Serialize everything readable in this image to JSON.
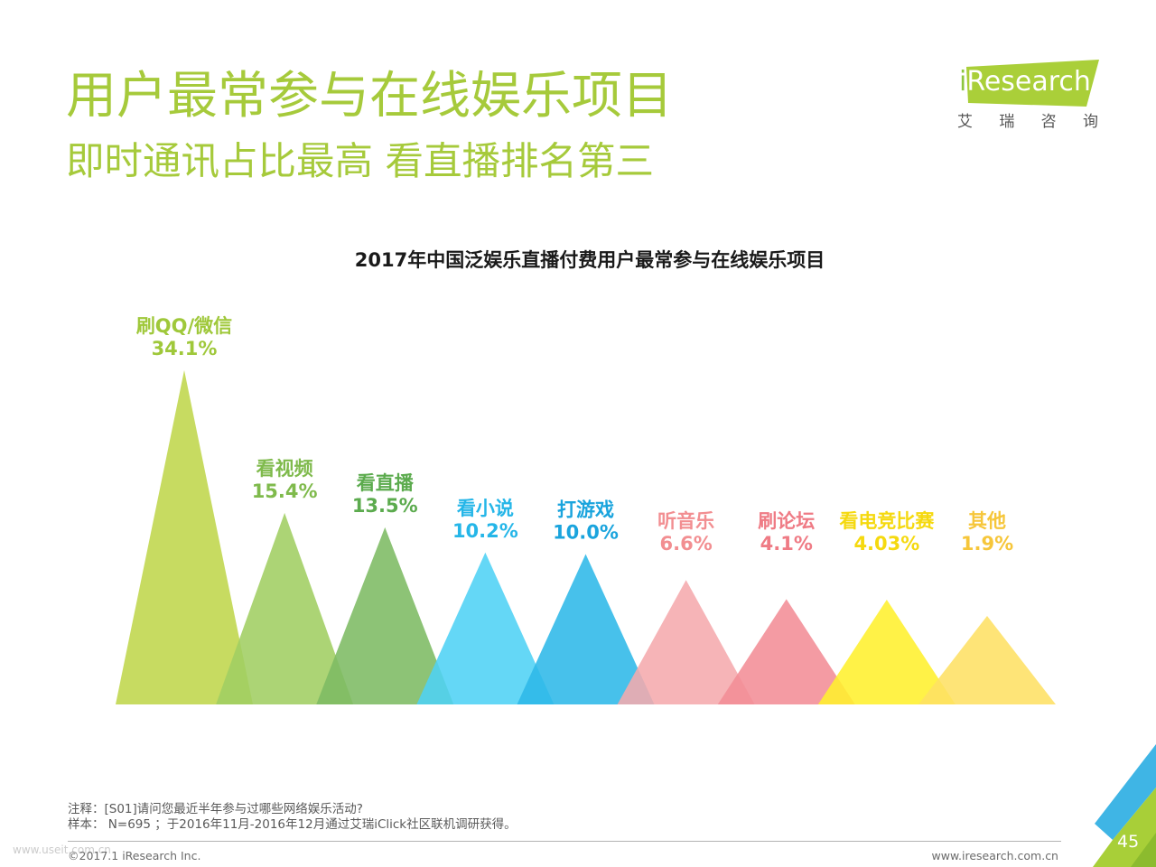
{
  "header": {
    "title": "用户最常参与在线娱乐项目",
    "subtitle": "即时通讯占比最高 看直播排名第三"
  },
  "logo": {
    "brand": "iResearch",
    "brand_cn": "艾 瑞 咨 询"
  },
  "chart_data": {
    "type": "bar",
    "title": "2017年中国泛娱乐直播付费用户最常参与在线娱乐项目",
    "categories": [
      "刷QQ/微信",
      "看视频",
      "看直播",
      "看小说",
      "打游戏",
      "听音乐",
      "刷论坛",
      "看电竞比赛",
      "其他"
    ],
    "values": [
      34.1,
      15.4,
      13.5,
      10.2,
      10.0,
      6.6,
      4.1,
      4.03,
      1.9
    ],
    "value_labels": [
      "34.1%",
      "15.4%",
      "13.5%",
      "10.2%",
      "10.0%",
      "6.6%",
      "4.1%",
      "4.03%",
      "1.9%"
    ],
    "grid": false,
    "colors": [
      "#bfd64b",
      "#a1ce62",
      "#7dbb63",
      "#4fd2f5",
      "#2db8e8",
      "#f5aaad",
      "#f28d96",
      "#fff02d",
      "#fee064"
    ],
    "label_colors": [
      "#9fc83a",
      "#7fba4c",
      "#5cab4e",
      "#25b6e8",
      "#1aa4dd",
      "#f28e91",
      "#ef7b85",
      "#f5d90f",
      "#f6c63a"
    ]
  },
  "notes": {
    "note": "注释：[S01]请问您最近半年参与过哪些网络娱乐活动?",
    "sample": "样本： N=695 ；于2016年11月-2016年12月通过艾瑞iClick社区联机调研获得。"
  },
  "footer": {
    "copyright": "©2017.1 iResearch Inc.",
    "website": "www.iresearch.com.cn",
    "page_number": "45",
    "watermark": "www.useit.com.cn"
  },
  "theme": {
    "accent": "#a6ca3b",
    "logo_green": "#aacf39",
    "logo_i": "#8dc63f",
    "corner_blue": "#3fb5e5",
    "corner_green": "#a8cf38",
    "corner_dark_green": "#8cbb2e"
  }
}
